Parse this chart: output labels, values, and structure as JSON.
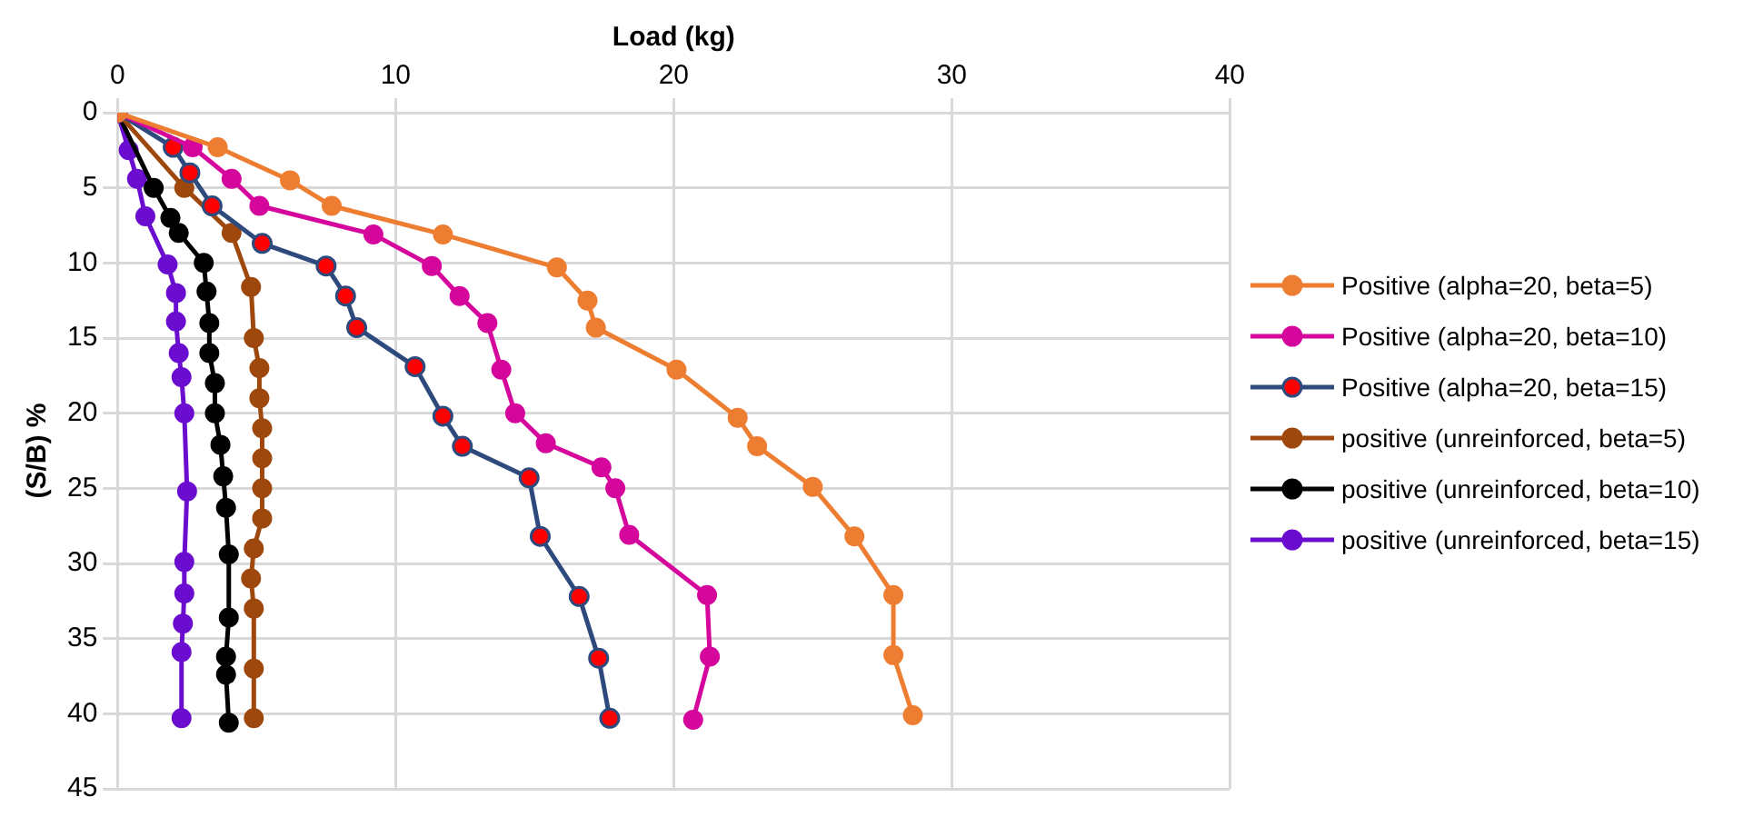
{
  "chart_data": {
    "type": "line",
    "xlabel": "Load (kg)",
    "ylabel": "(S/B) %",
    "xlim": [
      0,
      40
    ],
    "xticks": [
      0,
      10,
      20,
      30,
      40
    ],
    "ylim": [
      45,
      0
    ],
    "yticks": [
      0,
      5,
      10,
      15,
      20,
      25,
      30,
      35,
      40,
      45
    ],
    "grid": true,
    "legend": "right",
    "marker": "circle",
    "line_style": "solid",
    "series": [
      {
        "name": "Positive (alpha=20, beta=5)",
        "color": "#ed7d31",
        "x": [
          0,
          3.6,
          6.2,
          7.7,
          11.7,
          15.8,
          16.9,
          17.2,
          20.1,
          22.3,
          23.0,
          25.0,
          26.5,
          27.9,
          27.9,
          28.6
        ],
        "values": [
          0,
          2.3,
          4.5,
          6.2,
          8.1,
          10.3,
          12.5,
          14.3,
          17.1,
          20.3,
          22.2,
          24.9,
          28.2,
          32.1,
          36.1,
          40.1
        ]
      },
      {
        "name": "Positive (alpha=20, beta=10)",
        "color": "#d5069c",
        "x": [
          0,
          2.7,
          4.1,
          5.1,
          9.2,
          11.3,
          12.3,
          13.3,
          13.8,
          14.3,
          15.4,
          17.4,
          17.9,
          18.4,
          21.2,
          21.3,
          20.7
        ],
        "values": [
          0,
          2.3,
          4.4,
          6.2,
          8.1,
          10.2,
          12.2,
          14.0,
          17.1,
          20.0,
          22.0,
          23.6,
          25.0,
          28.1,
          32.1,
          36.2,
          40.4
        ]
      },
      {
        "name": "Positive (alpha=20, beta=15)",
        "color": "#2e4a7d",
        "colors": [
          "#ff0000",
          "#ff0000",
          "#ff0000",
          "#ff0000",
          "#ff0000",
          "#ff0000",
          "#ff0000",
          "#ff0000",
          "#ff0000",
          "#ff0000",
          "#ff0000",
          "#ff0000",
          "#ff0000",
          "#ff0000",
          "#ff0000",
          "#ff0000"
        ],
        "x": [
          0,
          2.0,
          2.6,
          3.4,
          5.2,
          7.5,
          8.2,
          8.6,
          10.7,
          11.7,
          12.4,
          14.8,
          15.2,
          16.6,
          17.3,
          17.7
        ],
        "values": [
          0,
          2.3,
          4.0,
          6.2,
          8.7,
          10.2,
          12.2,
          14.3,
          16.9,
          20.2,
          22.2,
          24.3,
          28.2,
          32.2,
          36.3,
          40.3
        ]
      },
      {
        "name": "positive (unreinforced, beta=5)",
        "color": "#9e480e",
        "x": [
          0,
          2.4,
          4.1,
          4.8,
          4.9,
          5.1,
          5.1,
          5.2,
          5.2,
          5.2,
          5.2,
          4.9,
          4.8,
          4.9,
          4.9,
          4.9
        ],
        "values": [
          0,
          5.0,
          8.0,
          11.6,
          15.0,
          17.0,
          19.0,
          21.0,
          23.0,
          25.0,
          27.0,
          29.0,
          31.0,
          33.0,
          37.0,
          40.3
        ]
      },
      {
        "name": "positive (unreinforced, beta=10)",
        "color": "#000000",
        "x": [
          0,
          1.3,
          1.9,
          2.2,
          3.1,
          3.2,
          3.3,
          3.3,
          3.5,
          3.5,
          3.7,
          3.8,
          3.9,
          4.0,
          4.0,
          3.9,
          3.9,
          4.0
        ],
        "values": [
          0,
          5.0,
          7.0,
          8.0,
          10.0,
          11.9,
          14.0,
          16.0,
          18.0,
          20.0,
          22.1,
          24.2,
          26.3,
          29.4,
          33.6,
          36.2,
          37.4,
          40.6
        ]
      },
      {
        "name": "positive (unreinforced, beta=15)",
        "color": "#6a0dcf",
        "x": [
          0,
          0.4,
          0.7,
          1.0,
          1.8,
          2.1,
          2.1,
          2.2,
          2.3,
          2.4,
          2.5,
          2.4,
          2.4,
          2.35,
          2.3,
          2.3
        ],
        "values": [
          0,
          2.5,
          4.4,
          6.9,
          10.1,
          12.0,
          13.9,
          16.0,
          17.6,
          20.0,
          25.2,
          29.9,
          32.0,
          34.0,
          35.9,
          40.3
        ]
      }
    ]
  }
}
